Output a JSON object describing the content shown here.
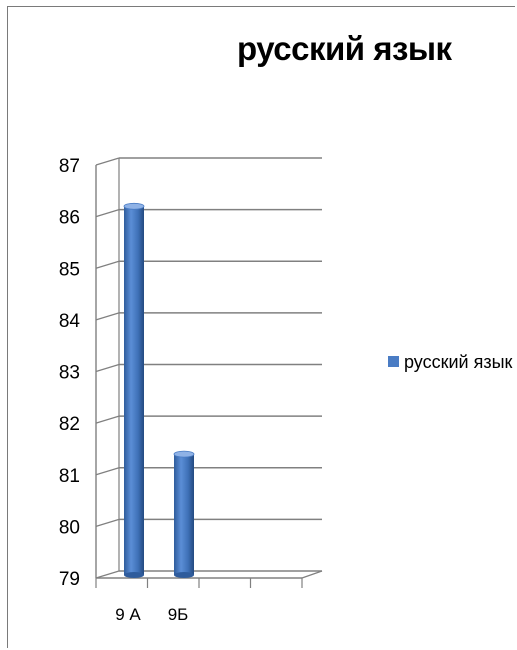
{
  "chart_data": {
    "type": "bar",
    "title": "русский язык",
    "categories": [
      "9 А",
      "9Б"
    ],
    "series": [
      {
        "name": "русский язык",
        "values": [
          86.2,
          81.4
        ],
        "color": "#4a7cc4"
      }
    ],
    "ylim": [
      79,
      87
    ],
    "yticks": [
      "79",
      "80",
      "81",
      "82",
      "83",
      "84",
      "85",
      "86",
      "87"
    ],
    "grid": true,
    "style": "3d-cylinder",
    "legend_position": "right"
  }
}
